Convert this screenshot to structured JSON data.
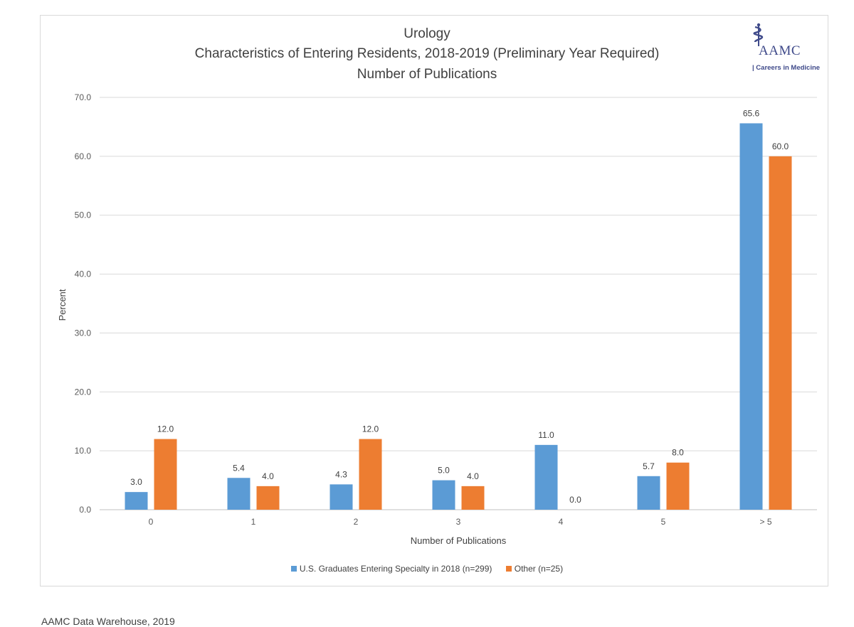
{
  "logo": {
    "org": "AAMC",
    "tagline": "| Careers in Medicine"
  },
  "footer": "AAMC Data Warehouse, 2019",
  "colors": {
    "series_1": "#5b9bd5",
    "series_2": "#ed7d31",
    "gridline": "#d9d9d9",
    "logo": "#3f4a8a"
  },
  "chart_data": {
    "type": "bar",
    "title": "Urology",
    "subtitle": "Characteristics of Entering Residents, 2018-2019 (Preliminary Year Required)",
    "subtitle_2": "Number of Publications",
    "xlabel": "Number of Publications",
    "ylabel": "Percent",
    "categories": [
      "0",
      "1",
      "2",
      "3",
      "4",
      "5",
      "> 5"
    ],
    "series": [
      {
        "name": "U.S. Graduates Entering Specialty in 2018 (n=299)",
        "values": [
          3.0,
          5.4,
          4.3,
          5.0,
          11.0,
          5.7,
          65.6
        ]
      },
      {
        "name": "Other (n=25)",
        "values": [
          12.0,
          4.0,
          12.0,
          4.0,
          0.0,
          8.0,
          60.0
        ]
      }
    ],
    "ylim": [
      0,
      70
    ],
    "yticks": [
      "0.0",
      "10.0",
      "20.0",
      "30.0",
      "40.0",
      "50.0",
      "60.0",
      "70.0"
    ],
    "grid": true,
    "legend_position": "bottom"
  }
}
